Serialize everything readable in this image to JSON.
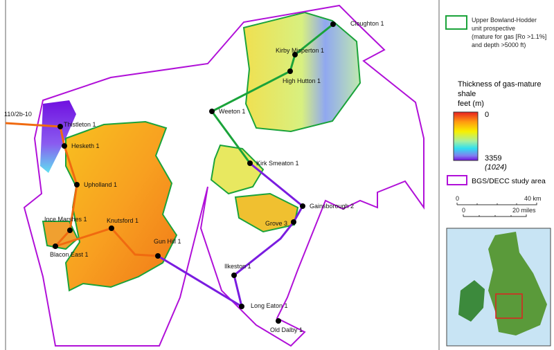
{
  "wells": [
    {
      "id": "w1",
      "name": "110/2b-10"
    },
    {
      "id": "w2",
      "name": "Thistleton 1"
    },
    {
      "id": "w3",
      "name": "Hesketh 1"
    },
    {
      "id": "w4",
      "name": "Upholland 1"
    },
    {
      "id": "w5",
      "name": "Ince Marshes 1"
    },
    {
      "id": "w6",
      "name": "Blacon East 1"
    },
    {
      "id": "w7",
      "name": "Knutsford 1"
    },
    {
      "id": "w8",
      "name": "Gun Hill 1"
    },
    {
      "id": "w9",
      "name": "Ilkeston 1"
    },
    {
      "id": "w10",
      "name": "Long Eaton 1"
    },
    {
      "id": "w11",
      "name": "Old Dalby 1"
    },
    {
      "id": "w12",
      "name": "Grove 3"
    },
    {
      "id": "w13",
      "name": "Gainsborough 2"
    },
    {
      "id": "w14",
      "name": "Kirk Smeaton 1"
    },
    {
      "id": "w15",
      "name": "Weeton 1"
    },
    {
      "id": "w16",
      "name": "High Hutton 1"
    },
    {
      "id": "w17",
      "name": "Kirby Misperton 1"
    },
    {
      "id": "w18",
      "name": "Cloughton 1"
    }
  ],
  "legend": {
    "prospective": {
      "line1": "Upper Bowland-Hodder",
      "line2": "unit prospective",
      "line3": "(mature for gas [Ro >1.1%]",
      "line4": "and depth >5000 ft)",
      "color": "#1aa33a"
    },
    "thickness": {
      "title1": "Thickness of gas-mature",
      "title2": "shale",
      "title3": "feet (m)",
      "min": "0",
      "max": "3359",
      "max_m": "(1024)"
    },
    "study_area": {
      "label": "BGS/DECC study area",
      "color": "#b010d8"
    },
    "scale": {
      "km0": "0",
      "km": "40 km",
      "mi0": "0",
      "mi": "20 miles"
    }
  },
  "colors": {
    "orange_line": "#f06a10",
    "purple_line": "#7a1ce0",
    "green_line": "#1aa33a"
  }
}
